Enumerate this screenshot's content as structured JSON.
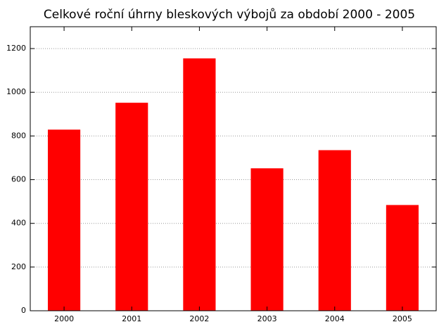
{
  "chart_data": {
    "type": "bar",
    "title": "Celkové roční úhrny bleskových výbojů za období 2000 - 2005",
    "categories": [
      "2000",
      "2001",
      "2002",
      "2003",
      "2004",
      "2005"
    ],
    "values": [
      829,
      952,
      1155,
      652,
      735,
      484
    ],
    "color": "#ff0000",
    "ylim": [
      0,
      1300
    ],
    "yticks": [
      0,
      200,
      400,
      600,
      800,
      1000,
      1200
    ],
    "grid": true
  }
}
